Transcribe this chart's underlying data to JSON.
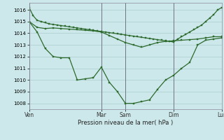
{
  "background_color": "#cce8ea",
  "grid_color": "#aacccc",
  "line_color": "#2d6a2d",
  "marker_color": "#2d6a2d",
  "xlabel": "Pression niveau de la mer( hPa )",
  "ylim": [
    1007.5,
    1016.6
  ],
  "yticks": [
    1008,
    1009,
    1010,
    1011,
    1012,
    1013,
    1014,
    1015,
    1016
  ],
  "xtick_labels": [
    "Ven",
    "Mar",
    "Sam",
    "Dim",
    "Lun"
  ],
  "xtick_positions": [
    0,
    18,
    24,
    36,
    48
  ],
  "series1_x": [
    0,
    1,
    2,
    3,
    4,
    5,
    6,
    7,
    8,
    9,
    10,
    11,
    12,
    13,
    14,
    15,
    16,
    17,
    18,
    19,
    20,
    21,
    22,
    23,
    24,
    25,
    26,
    27,
    28,
    29,
    30,
    31,
    32,
    33,
    34,
    35,
    36,
    37,
    38,
    39,
    40,
    41,
    42,
    43,
    44,
    45,
    46,
    47,
    48
  ],
  "series1_y": [
    1016.2,
    1015.5,
    1015.1,
    1015.0,
    1014.9,
    1014.8,
    1014.75,
    1014.7,
    1014.65,
    1014.6,
    1014.55,
    1014.5,
    1014.45,
    1014.4,
    1014.35,
    1014.3,
    1014.25,
    1014.2,
    1014.15,
    1014.1,
    1014.05,
    1014.0,
    1013.95,
    1013.9,
    1013.85,
    1013.8,
    1013.75,
    1013.7,
    1013.65,
    1013.6,
    1013.55,
    1013.5,
    1013.45,
    1013.4,
    1013.35,
    1013.3,
    1013.25,
    1013.5,
    1013.7,
    1013.9,
    1014.1,
    1014.3,
    1014.5,
    1014.7,
    1015.0,
    1015.3,
    1015.6,
    1016.0,
    1016.2
  ],
  "series2_x": [
    0,
    2,
    4,
    6,
    8,
    10,
    12,
    14,
    16,
    18,
    20,
    22,
    24,
    26,
    28,
    30,
    32,
    34,
    36,
    38,
    40,
    42,
    44,
    46,
    48
  ],
  "series2_y": [
    1015.0,
    1014.1,
    1012.7,
    1012.0,
    1011.9,
    1011.9,
    1010.0,
    1010.1,
    1010.2,
    1011.1,
    1009.8,
    1009.0,
    1008.0,
    1008.0,
    1008.15,
    1008.3,
    1009.2,
    1010.0,
    1010.4,
    1011.0,
    1011.5,
    1013.0,
    1013.4,
    1013.5,
    1013.6
  ],
  "series3_x": [
    0,
    2,
    4,
    6,
    8,
    10,
    12,
    14,
    16,
    18,
    20,
    22,
    24,
    26,
    28,
    30,
    32,
    34,
    36,
    38,
    40,
    42,
    44,
    46,
    48
  ],
  "series3_y": [
    1015.0,
    1014.5,
    1014.4,
    1014.45,
    1014.4,
    1014.35,
    1014.3,
    1014.25,
    1014.2,
    1014.1,
    1013.8,
    1013.5,
    1013.2,
    1013.0,
    1012.8,
    1013.0,
    1013.2,
    1013.3,
    1013.35,
    1013.4,
    1013.45,
    1013.5,
    1013.6,
    1013.7,
    1013.7
  ],
  "xlim": [
    0,
    48
  ]
}
